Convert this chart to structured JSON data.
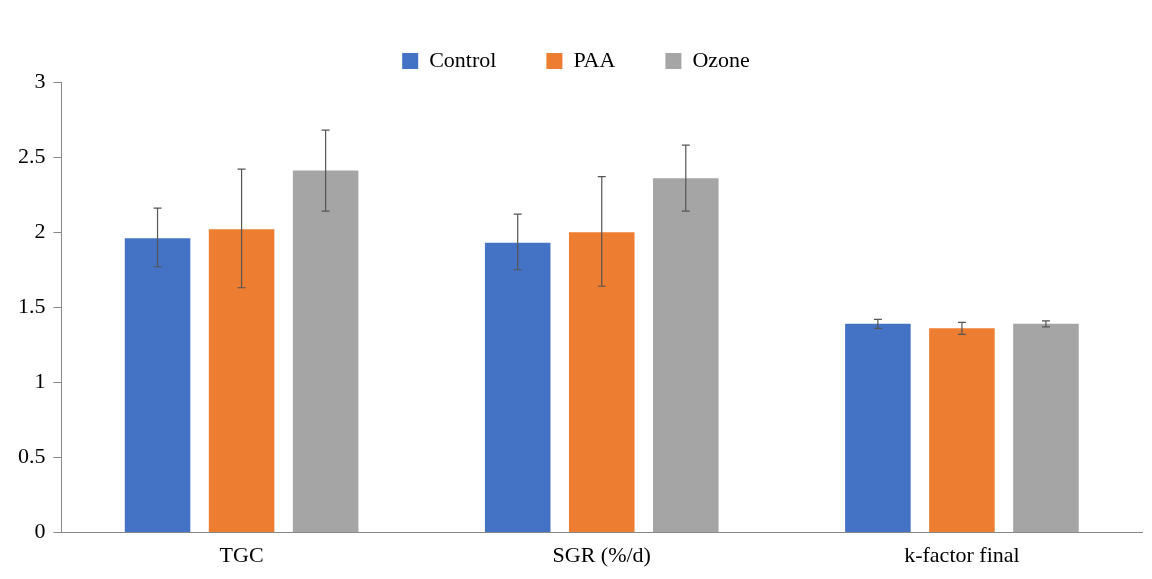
{
  "chart_data": {
    "type": "bar",
    "categories": [
      "TGC",
      "SGR (%/d)",
      "k-factor final"
    ],
    "series": [
      {
        "name": "Control",
        "color": "#4472c4",
        "values": [
          1.96,
          1.93,
          1.39
        ],
        "errors": [
          [
            1.77,
            2.16
          ],
          [
            1.75,
            2.12
          ],
          [
            1.36,
            1.42
          ]
        ]
      },
      {
        "name": "PAA",
        "color": "#ed7d31",
        "values": [
          2.02,
          2.0,
          1.36
        ],
        "errors": [
          [
            1.63,
            2.42
          ],
          [
            1.64,
            2.37
          ],
          [
            1.32,
            1.4
          ]
        ]
      },
      {
        "name": "Ozone",
        "color": "#a5a5a5",
        "values": [
          2.41,
          2.36,
          1.39
        ],
        "errors": [
          [
            2.14,
            2.68
          ],
          [
            2.14,
            2.58
          ],
          [
            1.37,
            1.41
          ]
        ]
      }
    ],
    "ylim": [
      0,
      3
    ],
    "yticks": [
      0,
      0.5,
      1,
      1.5,
      2,
      2.5,
      3
    ],
    "grid": false,
    "legend": "top"
  }
}
